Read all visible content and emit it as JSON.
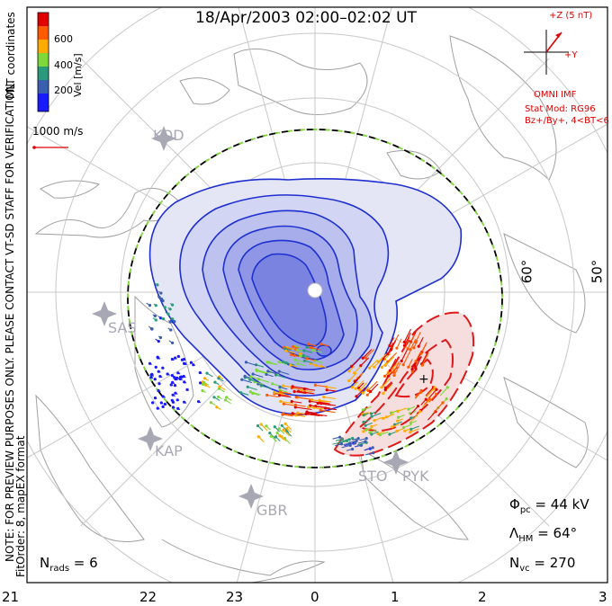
{
  "title": "18/Apr/2003 02:00–02:02 UT",
  "colorbar": {
    "unit_label": "Vel [m/s]",
    "ticks": [
      "600",
      "400",
      "200"
    ],
    "colors": [
      "#e00000",
      "#ff5a00",
      "#ffaa00",
      "#7fd83a",
      "#2a9a7a",
      "#3a5fb0",
      "#1a1aff"
    ]
  },
  "side_notes": {
    "mlt_coords": "MLT coordinates",
    "preview_note": "NOTE: FOR PREVIEW PURPOSES ONLY. PLEASE CONTACT VT-SD STAFF FOR VERIFICATION.",
    "fit_order": "FitOrder: 8, mapEX format"
  },
  "scale_vector": {
    "label": "1000 m/s"
  },
  "imf": {
    "z_label": "+Z (5 nT)",
    "y_label": "+Y",
    "source": "OMNI IMF",
    "stat_mod": "Stat Mod: RG96",
    "condition": "Bz+/By+, 4<BT<6"
  },
  "stations": [
    "KOD",
    "SAS",
    "KAP",
    "GBR",
    "STO",
    "PYK"
  ],
  "latitude_labels": [
    "60°",
    "50°"
  ],
  "mlt_labels": [
    "21",
    "22",
    "23",
    "0",
    "1",
    "2",
    "3"
  ],
  "stats": {
    "phi_pc": "44 kV",
    "lambda_hm": "64°",
    "n_vc": "270",
    "n_rads": "6"
  },
  "colors": {
    "dusk_cell": "#1f2fd0",
    "dawn_cell": "#e01818",
    "hm_boundary": "#7fd83a",
    "station": "#a8a8b4"
  }
}
